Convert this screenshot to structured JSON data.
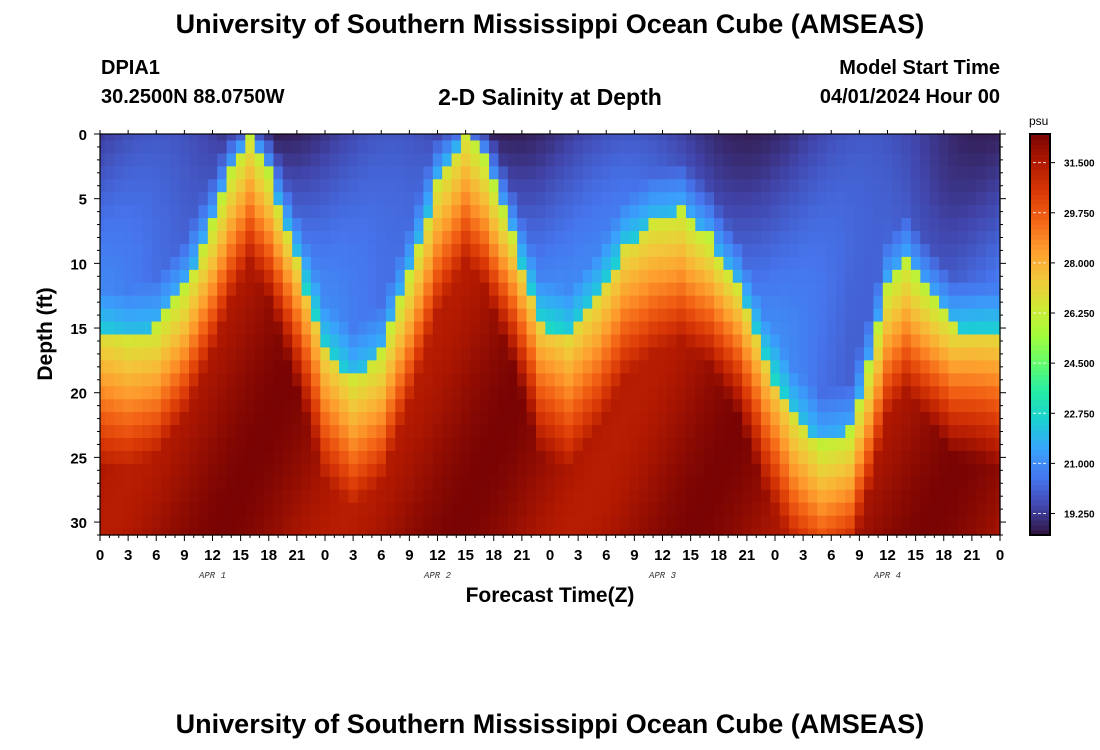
{
  "header": {
    "title": "University of Southern Mississippi Ocean Cube (AMSEAS)",
    "station_id": "DPIA1",
    "station_coords": "30.2500N  88.0750W",
    "plot_title": "2-D Salinity at Depth",
    "model_start_label": "Model Start Time",
    "model_start_value": "04/01/2024 Hour 00"
  },
  "footer": {
    "title": "University of Southern Mississippi Ocean Cube (AMSEAS)"
  },
  "chart_data": {
    "type": "heatmap",
    "title": "2-D Salinity at Depth",
    "xlabel": "Forecast Time(Z)",
    "ylabel": "Depth (ft)",
    "x_tick_labels": [
      "0",
      "3",
      "6",
      "9",
      "12",
      "15",
      "18",
      "21",
      "0",
      "3",
      "6",
      "9",
      "12",
      "15",
      "18",
      "21",
      "0",
      "3",
      "6",
      "9",
      "12",
      "15",
      "18",
      "21",
      "0",
      "3",
      "6",
      "9",
      "12",
      "15",
      "18",
      "21",
      "0"
    ],
    "x_hours_range": [
      0,
      96
    ],
    "day_labels": [
      {
        "label": "APR 1",
        "hour": 12
      },
      {
        "label": "APR 2",
        "hour": 36
      },
      {
        "label": "APR 3",
        "hour": 60
      },
      {
        "label": "APR 4",
        "hour": 84
      }
    ],
    "y_tick_labels": [
      "0",
      "5",
      "10",
      "15",
      "20",
      "25",
      "30"
    ],
    "y_ticks": [
      0,
      5,
      10,
      15,
      20,
      25,
      30
    ],
    "ylim": [
      0,
      31
    ],
    "y_inverted": true,
    "colorbar": {
      "unit": "psu",
      "range": [
        18.5,
        32.5
      ],
      "tick_labels": [
        "31.500",
        "29.750",
        "28.000",
        "26.250",
        "24.500",
        "22.750",
        "21.000",
        "19.250"
      ],
      "tick_values": [
        31.5,
        29.75,
        28.0,
        26.25,
        24.5,
        22.75,
        21.0,
        19.25
      ],
      "colormap": [
        "#30123b",
        "#4145ab",
        "#4675ed",
        "#39a2fc",
        "#1bcfd4",
        "#24eca6",
        "#61fc6c",
        "#a4fc3b",
        "#d1e834",
        "#f3c63a",
        "#fe9b2d",
        "#f36315",
        "#d93806",
        "#b11901",
        "#7a0403"
      ]
    },
    "halocline_depth_ft_by_hour": [
      {
        "hour": 0,
        "depth": 16
      },
      {
        "hour": 3,
        "depth": 16
      },
      {
        "hour": 6,
        "depth": 15
      },
      {
        "hour": 9,
        "depth": 12
      },
      {
        "hour": 12,
        "depth": 7
      },
      {
        "hour": 14,
        "depth": 3
      },
      {
        "hour": 16,
        "depth": 0
      },
      {
        "hour": 18,
        "depth": 3
      },
      {
        "hour": 21,
        "depth": 10
      },
      {
        "hour": 24,
        "depth": 17
      },
      {
        "hour": 27,
        "depth": 19
      },
      {
        "hour": 30,
        "depth": 17
      },
      {
        "hour": 33,
        "depth": 11
      },
      {
        "hour": 36,
        "depth": 4
      },
      {
        "hour": 39,
        "depth": 0
      },
      {
        "hour": 41,
        "depth": 2
      },
      {
        "hour": 44,
        "depth": 8
      },
      {
        "hour": 47,
        "depth": 15
      },
      {
        "hour": 50,
        "depth": 16
      },
      {
        "hour": 53,
        "depth": 13
      },
      {
        "hour": 56,
        "depth": 9
      },
      {
        "hour": 59,
        "depth": 7
      },
      {
        "hour": 62,
        "depth": 6
      },
      {
        "hour": 65,
        "depth": 8
      },
      {
        "hour": 68,
        "depth": 12
      },
      {
        "hour": 71,
        "depth": 18
      },
      {
        "hour": 74,
        "depth": 22
      },
      {
        "hour": 77,
        "depth": 24
      },
      {
        "hour": 80,
        "depth": 23
      },
      {
        "hour": 82,
        "depth": 18
      },
      {
        "hour": 84,
        "depth": 12
      },
      {
        "hour": 86,
        "depth": 10
      },
      {
        "hour": 88,
        "depth": 12
      },
      {
        "hour": 91,
        "depth": 15
      },
      {
        "hour": 96,
        "depth": 16
      }
    ]
  }
}
